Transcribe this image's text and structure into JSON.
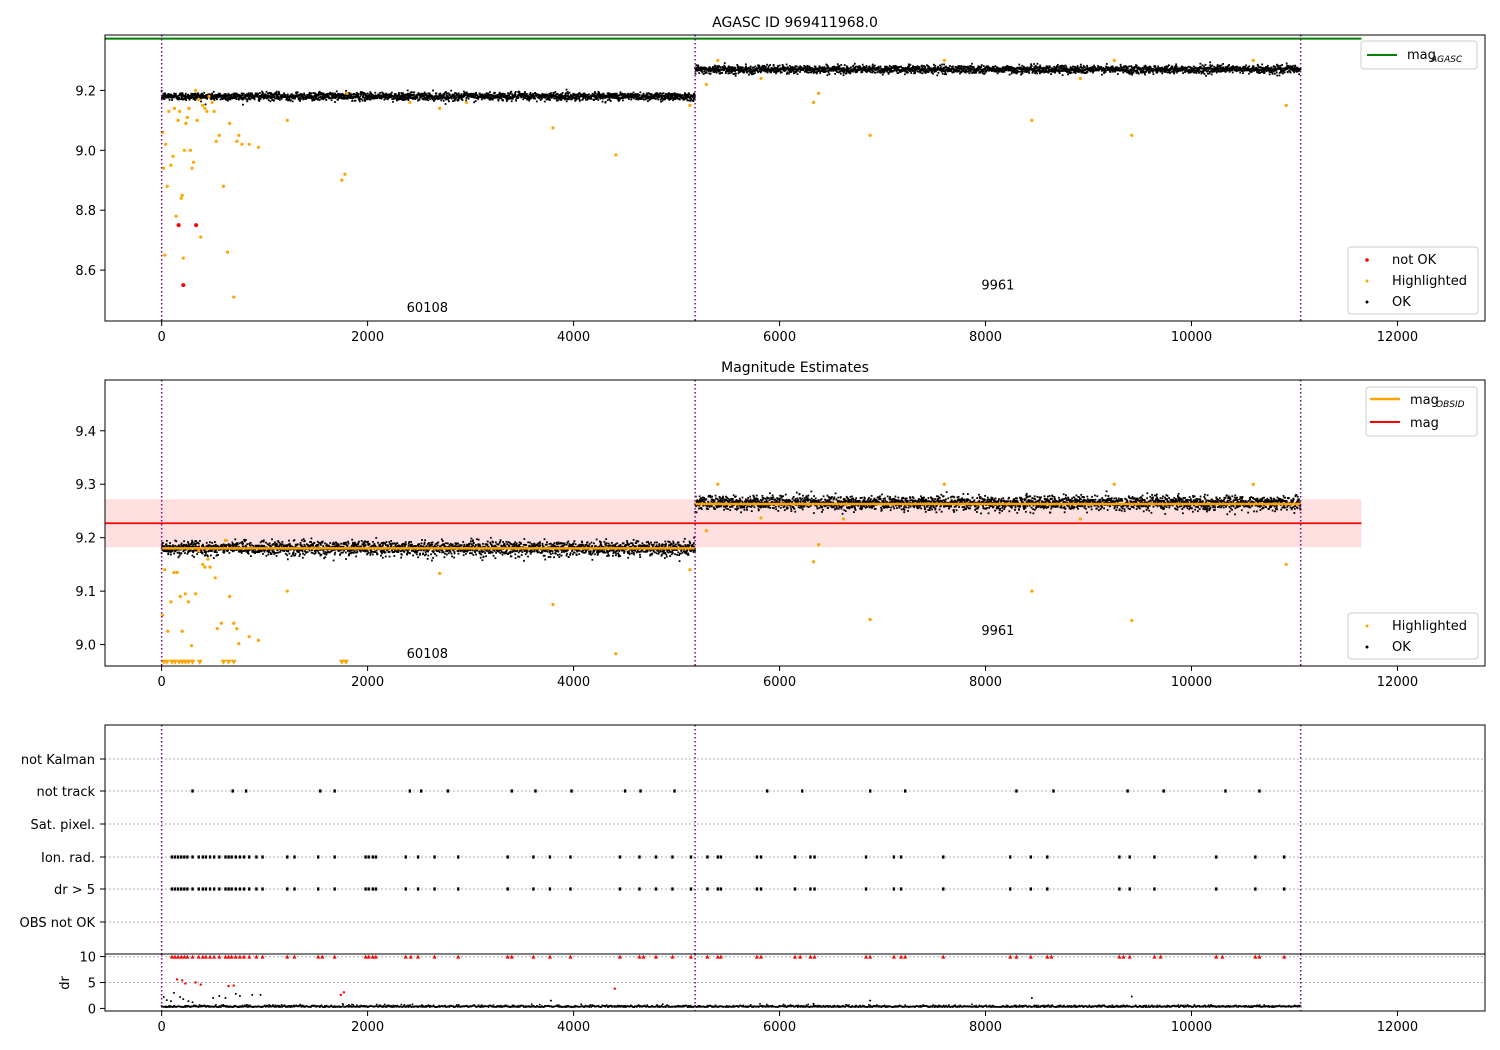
{
  "chart_data": [
    {
      "type": "scatter",
      "title": "AGASC ID 969411968.0",
      "xlim": [
        -550,
        12850
      ],
      "ylim": [
        8.43,
        9.385
      ],
      "xticks": [
        0,
        2000,
        4000,
        6000,
        8000,
        10000,
        12000
      ],
      "xtick_labels": [
        "0",
        "2000",
        "4000",
        "6000",
        "8000",
        "10000",
        "12000"
      ],
      "yticks": [
        8.6,
        8.8,
        9.0,
        9.2
      ],
      "ytick_labels": [
        "8.6",
        "8.8",
        "9.0",
        "9.2"
      ],
      "obs_boundaries": [
        0,
        5180,
        11060
      ],
      "observations": [
        {
          "label": "60108",
          "x": 2580,
          "y": 8.46,
          "x_range": [
            0,
            5180
          ],
          "level": 9.18,
          "spread": 0.012
        },
        {
          "label": "9961",
          "x": 8120,
          "y": 8.535,
          "x_range": [
            5180,
            11060
          ],
          "level": 9.27,
          "spread": 0.012
        }
      ],
      "reference_lines": [
        {
          "name": "mag_AGASC",
          "y": 9.373,
          "x_range": [
            -550,
            11650
          ],
          "color": "#008000"
        }
      ],
      "legend_top": {
        "position": "upper right",
        "entries": [
          {
            "name": "mag",
            "subscript": "AGASC",
            "color": "#008000"
          }
        ]
      },
      "legend_bottom": {
        "position": "lower right",
        "entries": [
          {
            "name": "not OK",
            "color": "#ff0000"
          },
          {
            "name": "Highlighted",
            "color": "#ffa500"
          },
          {
            "name": "OK",
            "color": "#000000"
          }
        ]
      },
      "highlighted_points": [
        [
          10,
          9.06
        ],
        [
          20,
          8.94
        ],
        [
          30,
          8.65
        ],
        [
          40,
          9.02
        ],
        [
          55,
          8.88
        ],
        [
          70,
          9.13
        ],
        [
          90,
          8.95
        ],
        [
          110,
          8.98
        ],
        [
          125,
          9.14
        ],
        [
          140,
          8.78
        ],
        [
          160,
          9.1
        ],
        [
          175,
          9.13
        ],
        [
          190,
          8.84
        ],
        [
          200,
          8.85
        ],
        [
          210,
          8.64
        ],
        [
          220,
          9.0
        ],
        [
          235,
          9.09
        ],
        [
          250,
          9.11
        ],
        [
          265,
          9.14
        ],
        [
          280,
          9.0
        ],
        [
          295,
          8.94
        ],
        [
          310,
          8.96
        ],
        [
          330,
          9.2
        ],
        [
          345,
          9.1
        ],
        [
          360,
          9.17
        ],
        [
          380,
          8.71
        ],
        [
          400,
          9.15
        ],
        [
          420,
          9.14
        ],
        [
          440,
          9.13
        ],
        [
          460,
          9.18
        ],
        [
          490,
          9.16
        ],
        [
          510,
          9.13
        ],
        [
          530,
          9.03
        ],
        [
          560,
          9.05
        ],
        [
          600,
          8.88
        ],
        [
          640,
          8.66
        ],
        [
          660,
          9.09
        ],
        [
          700,
          8.51
        ],
        [
          730,
          9.03
        ],
        [
          750,
          9.05
        ],
        [
          780,
          9.02
        ],
        [
          850,
          9.02
        ],
        [
          940,
          9.01
        ],
        [
          1220,
          9.1
        ],
        [
          1750,
          8.9
        ],
        [
          1780,
          8.92
        ],
        [
          1800,
          9.19
        ],
        [
          2410,
          9.16
        ],
        [
          2700,
          9.14
        ],
        [
          2960,
          9.16
        ],
        [
          3800,
          9.075
        ],
        [
          4410,
          8.985
        ],
        [
          5130,
          9.15
        ],
        [
          5290,
          9.22
        ],
        [
          6330,
          9.16
        ],
        [
          6380,
          9.19
        ],
        [
          6880,
          9.05
        ],
        [
          8450,
          9.1
        ],
        [
          9420,
          9.05
        ],
        [
          10920,
          9.15
        ],
        [
          5400,
          9.3
        ],
        [
          5820,
          9.24
        ],
        [
          7600,
          9.3
        ],
        [
          8920,
          9.24
        ],
        [
          9250,
          9.3
        ],
        [
          10600,
          9.3
        ]
      ],
      "not_ok_points": [
        [
          165,
          8.75
        ],
        [
          210,
          8.55
        ],
        [
          335,
          8.75
        ]
      ]
    },
    {
      "type": "scatter",
      "title": "Magnitude Estimates",
      "xlim": [
        -550,
        12850
      ],
      "ylim": [
        8.96,
        9.495
      ],
      "xticks": [
        0,
        2000,
        4000,
        6000,
        8000,
        10000,
        12000
      ],
      "xtick_labels": [
        "0",
        "2000",
        "4000",
        "6000",
        "8000",
        "10000",
        "12000"
      ],
      "yticks": [
        9.0,
        9.1,
        9.2,
        9.3,
        9.4
      ],
      "ytick_labels": [
        "9.0",
        "9.1",
        "9.2",
        "9.3",
        "9.4"
      ],
      "obs_boundaries": [
        0,
        5180,
        11060
      ],
      "observations": [
        {
          "label": "60108",
          "x": 2580,
          "y": 8.975,
          "x_range": [
            0,
            5180
          ],
          "level": 9.18,
          "spread": 0.012,
          "mag_obsid": 9.18
        },
        {
          "label": "9961",
          "x": 8120,
          "y": 9.018,
          "x_range": [
            5180,
            11060
          ],
          "level": 9.265,
          "spread": 0.012,
          "mag_obsid": 9.263
        }
      ],
      "mag_line": {
        "y": 9.227,
        "x_range": [
          -550,
          11650
        ],
        "color": "#ff0000"
      },
      "mag_band": {
        "y_range": [
          9.182,
          9.272
        ],
        "x_range": [
          -550,
          11650
        ],
        "color": "#ff0000"
      },
      "legend_top": {
        "position": "upper right",
        "entries": [
          {
            "name": "mag",
            "subscript": "OBSID",
            "color": "#ffa500"
          },
          {
            "name": "mag",
            "subscript": "",
            "color": "#ff0000"
          }
        ]
      },
      "legend_bottom": {
        "position": "lower right",
        "entries": [
          {
            "name": "Highlighted",
            "color": "#ffa500"
          },
          {
            "name": "OK",
            "color": "#000000"
          }
        ]
      },
      "highlighted_points": [
        [
          10,
          9.055
        ],
        [
          30,
          9.14
        ],
        [
          60,
          9.025
        ],
        [
          90,
          9.08
        ],
        [
          120,
          9.135
        ],
        [
          150,
          9.135
        ],
        [
          180,
          9.09
        ],
        [
          200,
          9.025
        ],
        [
          230,
          9.095
        ],
        [
          260,
          9.08
        ],
        [
          290,
          8.998
        ],
        [
          330,
          9.095
        ],
        [
          360,
          9.175
        ],
        [
          400,
          9.15
        ],
        [
          420,
          9.145
        ],
        [
          450,
          9.16
        ],
        [
          470,
          9.145
        ],
        [
          520,
          9.125
        ],
        [
          540,
          9.03
        ],
        [
          580,
          9.04
        ],
        [
          620,
          9.195
        ],
        [
          660,
          9.09
        ],
        [
          700,
          9.04
        ],
        [
          730,
          9.03
        ],
        [
          750,
          9.002
        ],
        [
          850,
          9.015
        ],
        [
          940,
          9.008
        ],
        [
          1220,
          9.1
        ],
        [
          2700,
          9.133
        ],
        [
          3800,
          9.075
        ],
        [
          4410,
          8.983
        ],
        [
          5130,
          9.14
        ],
        [
          5290,
          9.213
        ],
        [
          6330,
          9.155
        ],
        [
          6380,
          9.187
        ],
        [
          6880,
          9.047
        ],
        [
          8450,
          9.1
        ],
        [
          9420,
          9.045
        ],
        [
          10920,
          9.15
        ],
        [
          5400,
          9.3
        ],
        [
          5820,
          9.237
        ],
        [
          6620,
          9.235
        ],
        [
          7600,
          9.3
        ],
        [
          8920,
          9.235
        ],
        [
          9250,
          9.3
        ],
        [
          10600,
          9.3
        ]
      ],
      "limit_markers": [
        [
          20,
          8.966
        ],
        [
          50,
          8.966
        ],
        [
          100,
          8.966
        ],
        [
          130,
          8.966
        ],
        [
          170,
          8.966
        ],
        [
          200,
          8.966
        ],
        [
          230,
          8.966
        ],
        [
          260,
          8.966
        ],
        [
          300,
          8.966
        ],
        [
          370,
          8.966
        ],
        [
          600,
          8.966
        ],
        [
          650,
          8.966
        ],
        [
          700,
          8.966
        ],
        [
          1750,
          8.966
        ],
        [
          1790,
          8.966
        ]
      ]
    },
    {
      "type": "scatter",
      "title": "",
      "xlim": [
        -550,
        12850
      ],
      "categories": [
        "not Kalman",
        "not track",
        "Sat. pixel.",
        "Ion. rad.",
        "dr > 5",
        "OBS not OK"
      ],
      "obs_boundaries": [
        0,
        5180,
        11060
      ],
      "flag_events": {
        "not track": [
          300,
          690,
          820,
          1540,
          1680,
          2410,
          2520,
          2780,
          3400,
          3630,
          3980,
          4500,
          4650,
          4980,
          5880,
          6220,
          6880,
          7220,
          8300,
          8660,
          9380,
          9730,
          10330,
          10660
        ],
        "Ion. rad.": [
          100,
          130,
          160,
          190,
          220,
          250,
          300,
          360,
          400,
          430,
          470,
          510,
          560,
          620,
          650,
          680,
          720,
          760,
          800,
          850,
          920,
          980,
          1220,
          1290,
          1520,
          1680,
          1980,
          2010,
          2050,
          2080,
          2370,
          2490,
          2650,
          2880,
          3360,
          3610,
          3770,
          3970,
          4450,
          4640,
          4800,
          4960,
          5140,
          5300,
          5400,
          5430,
          5780,
          5820,
          6150,
          6300,
          6340,
          6840,
          7110,
          7180,
          7590,
          8240,
          8440,
          8600,
          9300,
          9400,
          9640,
          10240,
          10620,
          10900
        ],
        "dr > 5": [
          100,
          130,
          160,
          190,
          220,
          250,
          300,
          360,
          400,
          430,
          470,
          510,
          560,
          620,
          650,
          680,
          720,
          760,
          800,
          850,
          920,
          980,
          1220,
          1290,
          1520,
          1680,
          1980,
          2010,
          2050,
          2080,
          2370,
          2490,
          2650,
          2880,
          3360,
          3610,
          3770,
          3970,
          4450,
          4640,
          4800,
          4960,
          5140,
          5300,
          5400,
          5430,
          5780,
          5820,
          6150,
          6300,
          6340,
          6840,
          7110,
          7180,
          7590,
          8240,
          8440,
          8600,
          9300,
          9400,
          9640,
          10240,
          10620,
          10900
        ]
      }
    },
    {
      "type": "scatter",
      "title": "",
      "ylabel": "dr",
      "xlim": [
        -550,
        12850
      ],
      "ylim": [
        -0.5,
        10.5
      ],
      "xticks": [
        0,
        2000,
        4000,
        6000,
        8000,
        10000,
        12000
      ],
      "xtick_labels": [
        "0",
        "2000",
        "4000",
        "6000",
        "8000",
        "10000",
        "12000"
      ],
      "yticks": [
        0,
        5,
        10
      ],
      "ytick_labels": [
        "0",
        "5",
        "10"
      ],
      "obs_boundaries": [
        0,
        5180,
        11060
      ],
      "baseline_dr": 0.25,
      "capped_at_10_x": [
        100,
        130,
        160,
        190,
        220,
        250,
        300,
        360,
        400,
        430,
        470,
        510,
        560,
        620,
        650,
        680,
        720,
        760,
        800,
        850,
        920,
        980,
        1220,
        1290,
        1520,
        1560,
        1680,
        1980,
        2010,
        2050,
        2080,
        2370,
        2420,
        2490,
        2650,
        2880,
        3360,
        3400,
        3610,
        3770,
        3970,
        4450,
        4640,
        4680,
        4800,
        4960,
        5140,
        5300,
        5400,
        5430,
        5780,
        5820,
        6150,
        6200,
        6300,
        6340,
        6840,
        6880,
        7110,
        7180,
        7220,
        7590,
        8240,
        8300,
        8440,
        8600,
        8640,
        9300,
        9340,
        9400,
        9640,
        9700,
        10240,
        10300,
        10620,
        10660,
        10900
      ],
      "not_ok_points": [
        [
          150,
          5.6
        ],
        [
          200,
          5.4
        ],
        [
          230,
          4.8
        ],
        [
          330,
          5.0
        ],
        [
          380,
          4.6
        ],
        [
          650,
          4.3
        ],
        [
          700,
          4.4
        ],
        [
          1740,
          2.6
        ],
        [
          1770,
          3.1
        ],
        [
          4400,
          3.8
        ]
      ],
      "ok_outliers": [
        [
          20,
          2.2
        ],
        [
          50,
          1.6
        ],
        [
          90,
          1.4
        ],
        [
          120,
          3.0
        ],
        [
          180,
          2.2
        ],
        [
          210,
          1.8
        ],
        [
          260,
          1.4
        ],
        [
          300,
          1.2
        ],
        [
          500,
          2.0
        ],
        [
          560,
          2.4
        ],
        [
          620,
          2.0
        ],
        [
          720,
          2.8
        ],
        [
          760,
          2.4
        ],
        [
          880,
          2.6
        ],
        [
          960,
          2.6
        ],
        [
          3780,
          1.5
        ],
        [
          6330,
          0.9
        ],
        [
          6880,
          1.5
        ],
        [
          8450,
          2.0
        ],
        [
          9420,
          2.3
        ]
      ]
    }
  ]
}
